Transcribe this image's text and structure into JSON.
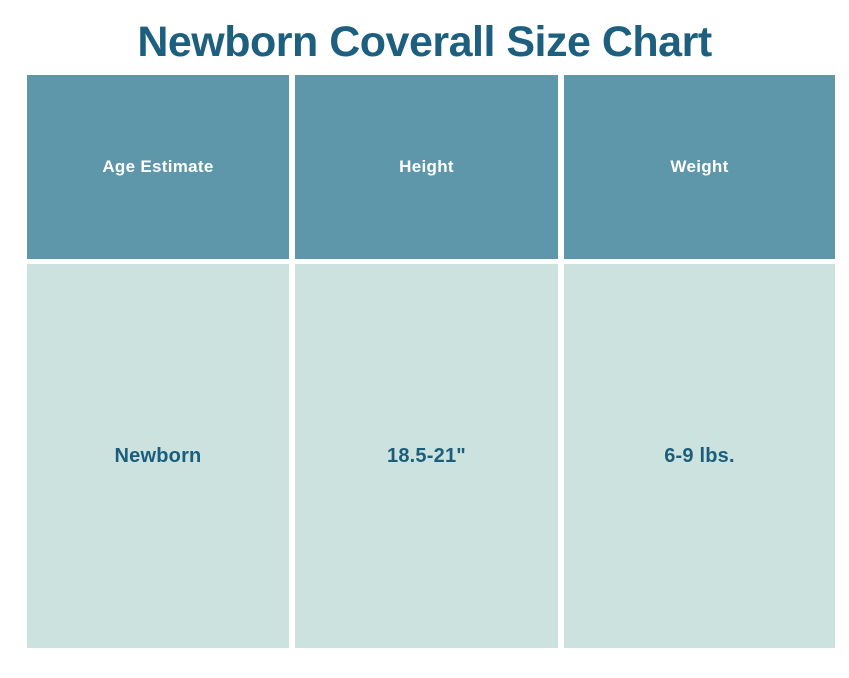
{
  "title": "Newborn Coverall Size Chart",
  "colors": {
    "title_text": "#1d5f7e",
    "header_bg": "#5f97aa",
    "header_text": "#ffffff",
    "cell_bg": "#cce2de",
    "cell_text": "#1b5e7c",
    "page_bg": "#ffffff"
  },
  "chart_data": {
    "type": "table",
    "title": "Newborn Coverall Size Chart",
    "columns": [
      "Age Estimate",
      "Height",
      "Weight"
    ],
    "rows": [
      [
        "Newborn",
        "18.5-21\"",
        "6-9 lbs."
      ]
    ],
    "layout_hints": {
      "header_row_shaded": true,
      "grid": "white gutters between cells, no borders",
      "text_align": "center"
    }
  }
}
